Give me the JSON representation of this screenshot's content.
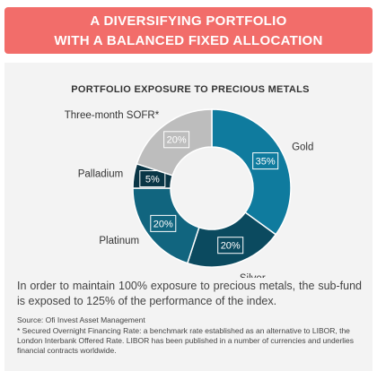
{
  "banner": [
    "A DIVERSIFYING PORTFOLIO",
    "WITH A BALANCED FIXED ALLOCATION"
  ],
  "chart_data": {
    "type": "pie",
    "donut": true,
    "title": "PORTFOLIO EXPOSURE TO PRECIOUS METALS",
    "categories": [
      "Gold",
      "Silver",
      "Platinum",
      "Palladium",
      "Three-month SOFR*"
    ],
    "values": [
      35,
      20,
      20,
      5,
      20
    ],
    "value_labels": [
      "35%",
      "20%",
      "20%",
      "5%",
      "20%"
    ],
    "colors": [
      "#0f7b9e",
      "#0b4a5f",
      "#11657f",
      "#0a3646",
      "#bdbdbd"
    ]
  },
  "body": "In order to maintain 100% exposure to precious metals, the sub-fund is exposed to 125% of the performance of the index.",
  "source": "Source: Ofi Invest Asset Management",
  "footnote": "* Secured Overnight Financing Rate: a benchmark rate established as an alternative to LIBOR, the London Interbank Offered Rate. LIBOR has been published in a number of currencies and underlies financial contracts worldwide."
}
